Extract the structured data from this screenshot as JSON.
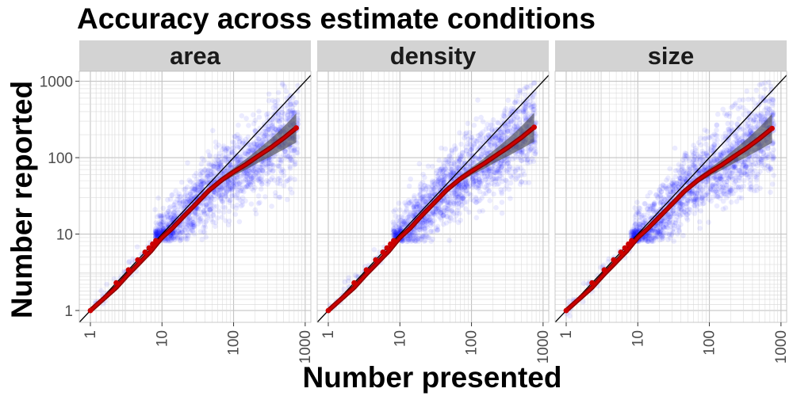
{
  "chart_data": {
    "type": "scatter",
    "title": "Accuracy across estimate conditions",
    "xlabel": "Number presented",
    "ylabel": "Number reported",
    "x_scale": "log10",
    "y_scale": "log10",
    "xlim": [
      0.7,
      1200
    ],
    "ylim": [
      0.7,
      1350
    ],
    "x_ticks": [
      1,
      10,
      100,
      1000
    ],
    "x_tick_labels": [
      "1",
      "10",
      "100",
      "1000"
    ],
    "y_ticks": [
      1,
      10,
      100,
      1000
    ],
    "y_tick_labels": [
      "1",
      "10",
      "100",
      "1000"
    ],
    "grid": true,
    "colors": {
      "points": "#0000ff",
      "fit": "#cc0000",
      "ribbon": "#555555",
      "identity": "#000000",
      "strip": "#d3d3d3",
      "grid": "#bfbfbf"
    },
    "facets": [
      {
        "label": "area",
        "shift": 0.0
      },
      {
        "label": "density",
        "shift": 0.03
      },
      {
        "label": "size",
        "shift": -0.02
      }
    ],
    "identity_line": {
      "from": [
        0.7,
        0.7
      ],
      "to": [
        1350,
        1350
      ]
    },
    "fit_line": {
      "x": [
        1,
        2.3,
        3.4,
        4.6,
        5.8,
        7,
        8.5,
        10,
        14,
        20,
        30,
        45,
        70,
        100,
        150,
        220,
        330,
        500,
        750
      ],
      "y": [
        1,
        2,
        3,
        4,
        5,
        6,
        7.5,
        9,
        12,
        17,
        25,
        37,
        52,
        65,
        82,
        105,
        135,
        180,
        245
      ]
    },
    "ribbon_halfwidth_log10": {
      "x": [
        20,
        70,
        150,
        300,
        500,
        750
      ],
      "h": [
        0.02,
        0.04,
        0.07,
        0.11,
        0.15,
        0.19
      ]
    },
    "scatter_ranges": {
      "x_main": [
        8,
        800
      ],
      "x_sparse": [
        1,
        8
      ],
      "y_band_low": 8,
      "y_band_high": 100,
      "y_max": 1000
    }
  }
}
